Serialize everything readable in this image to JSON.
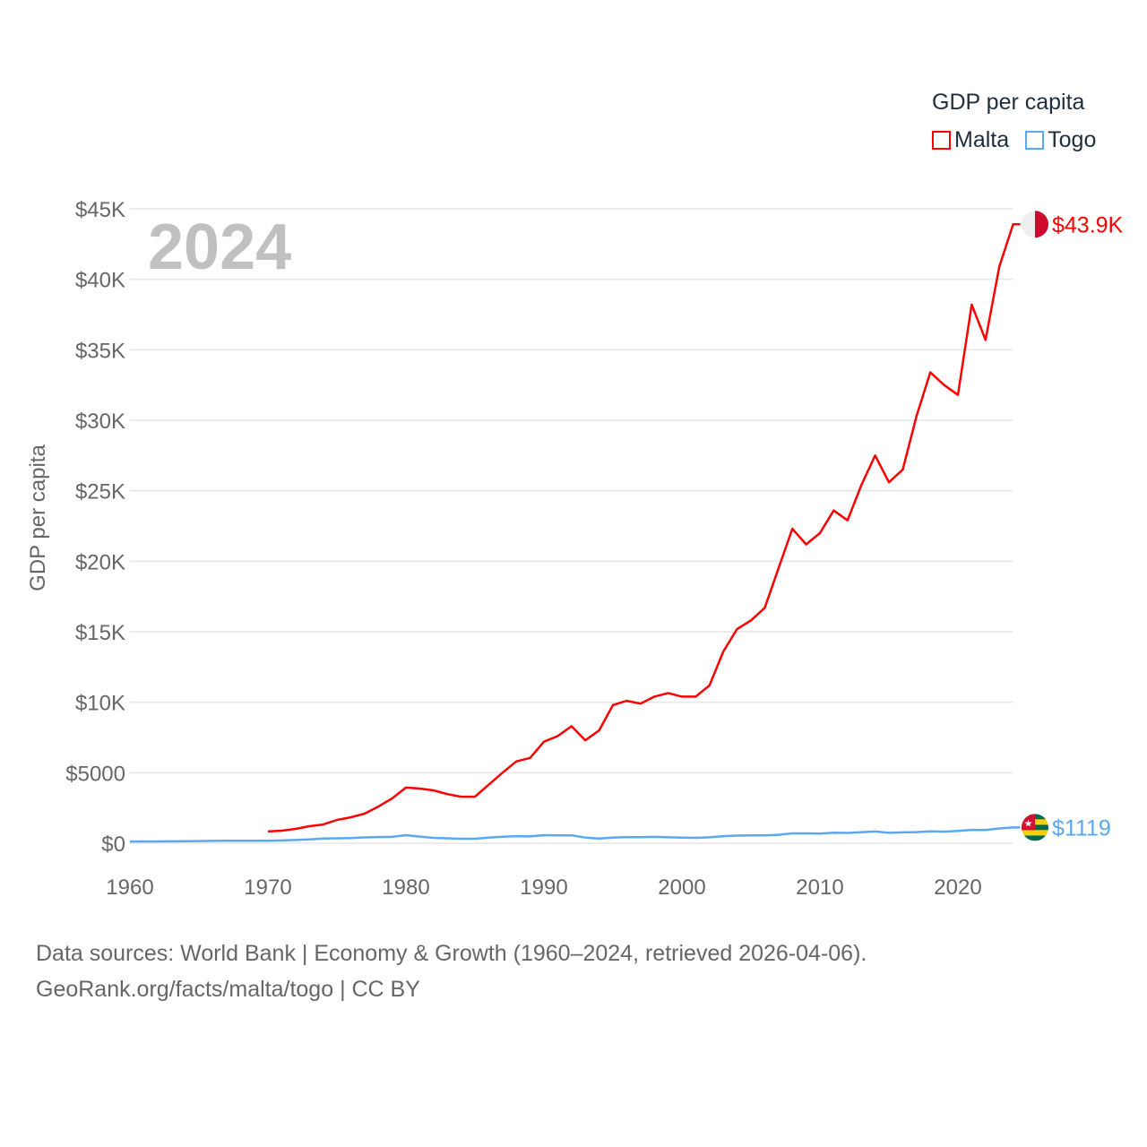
{
  "chart_data": {
    "type": "line",
    "title": "",
    "year_label": "2024",
    "xlabel": "",
    "ylabel": "GDP per capita",
    "xlim": [
      1960,
      2024
    ],
    "ylim": [
      0,
      45000
    ],
    "x_ticks": [
      1960,
      1970,
      1980,
      1990,
      2000,
      2010,
      2020
    ],
    "x_tick_labels": [
      "1960",
      "1970",
      "1980",
      "1990",
      "2000",
      "2010",
      "2020"
    ],
    "y_ticks": [
      0,
      5000,
      10000,
      15000,
      20000,
      25000,
      30000,
      35000,
      40000,
      45000
    ],
    "y_tick_labels": [
      "$0",
      "$5000",
      "$10K",
      "$15K",
      "$20K",
      "$25K",
      "$30K",
      "$35K",
      "$40K",
      "$45K"
    ],
    "grid": true,
    "legend": {
      "title": "GDP per capita",
      "position": "top-right"
    },
    "series": [
      {
        "name": "Malta",
        "color": "#ff0000",
        "end_label": "$43.9K",
        "x": [
          1970,
          1971,
          1972,
          1973,
          1974,
          1975,
          1976,
          1977,
          1978,
          1979,
          1980,
          1981,
          1982,
          1983,
          1984,
          1985,
          1986,
          1987,
          1988,
          1989,
          1990,
          1991,
          1992,
          1993,
          1994,
          1995,
          1996,
          1997,
          1998,
          1999,
          2000,
          2001,
          2002,
          2003,
          2004,
          2005,
          2006,
          2007,
          2008,
          2009,
          2010,
          2011,
          2012,
          2013,
          2014,
          2015,
          2016,
          2017,
          2018,
          2019,
          2020,
          2021,
          2022,
          2023,
          2024
        ],
        "values": [
          830,
          890,
          1020,
          1210,
          1330,
          1650,
          1840,
          2100,
          2600,
          3180,
          3950,
          3880,
          3750,
          3480,
          3300,
          3300,
          4150,
          5000,
          5800,
          6050,
          7200,
          7600,
          8300,
          7300,
          8000,
          9800,
          10100,
          9900,
          10400,
          10650,
          10400,
          10400,
          11200,
          13600,
          15200,
          15800,
          16700,
          19500,
          22300,
          21200,
          22000,
          23600,
          22900,
          25400,
          27500,
          25600,
          26500,
          30300,
          33400,
          32500,
          31800,
          38200,
          35700,
          40900,
          43900
        ]
      },
      {
        "name": "Togo",
        "color": "#5aa9f0",
        "end_label": "$1119",
        "x": [
          1960,
          1961,
          1962,
          1963,
          1964,
          1965,
          1966,
          1967,
          1968,
          1969,
          1970,
          1971,
          1972,
          1973,
          1974,
          1975,
          1976,
          1977,
          1978,
          1979,
          1980,
          1981,
          1982,
          1983,
          1984,
          1985,
          1986,
          1987,
          1988,
          1989,
          1990,
          1991,
          1992,
          1993,
          1994,
          1995,
          1996,
          1997,
          1998,
          1999,
          2000,
          2001,
          2002,
          2003,
          2004,
          2005,
          2006,
          2007,
          2008,
          2009,
          2010,
          2011,
          2012,
          2013,
          2014,
          2015,
          2016,
          2017,
          2018,
          2019,
          2020,
          2021,
          2022,
          2023,
          2024
        ],
        "values": [
          120,
          125,
          130,
          135,
          145,
          155,
          165,
          170,
          175,
          180,
          180,
          200,
          230,
          270,
          330,
          350,
          360,
          410,
          440,
          450,
          570,
          470,
          380,
          350,
          320,
          320,
          400,
          460,
          500,
          480,
          570,
          550,
          560,
          400,
          330,
          400,
          440,
          430,
          450,
          420,
          400,
          380,
          420,
          500,
          540,
          550,
          550,
          600,
          700,
          700,
          680,
          750,
          730,
          780,
          830,
          740,
          770,
          790,
          840,
          820,
          870,
          950,
          940,
          1050,
          1119
        ]
      }
    ]
  },
  "footer": {
    "line1": "Data sources: World Bank | Economy & Growth (1960–2024, retrieved 2026-04-06).",
    "line2": "GeoRank.org/facts/malta/togo | CC BY"
  }
}
